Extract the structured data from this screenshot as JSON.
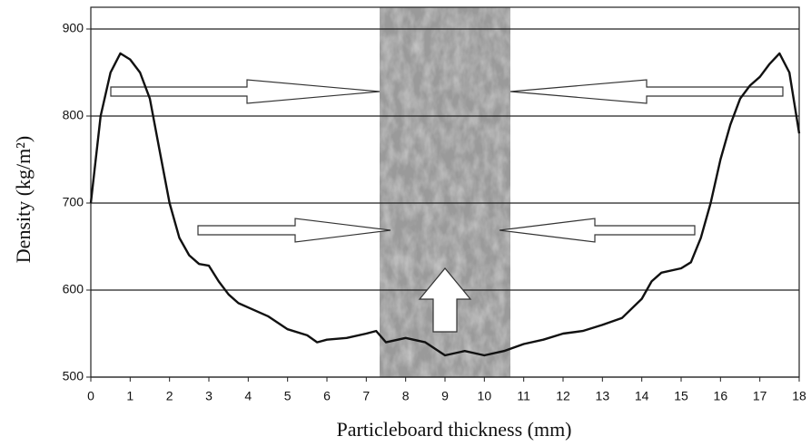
{
  "chart_data": {
    "type": "line",
    "xlabel": "Particleboard thickness  (mm)",
    "ylabel": "Density (kg/m²)",
    "xlim": [
      0,
      18
    ],
    "xticks": [
      0,
      1,
      2,
      3,
      4,
      5,
      6,
      7,
      8,
      9,
      10,
      11,
      12,
      13,
      14,
      15,
      16,
      17,
      18
    ],
    "ylim": [
      500,
      925
    ],
    "yticks": [
      500,
      600,
      700,
      800,
      900
    ],
    "grid": true,
    "series": [
      {
        "color": "#111111",
        "x": [
          0,
          0.25,
          0.5,
          0.75,
          1,
          1.25,
          1.5,
          1.75,
          2,
          2.25,
          2.5,
          2.75,
          3,
          3.25,
          3.5,
          3.75,
          4,
          4.5,
          5,
          5.5,
          5.75,
          6,
          6.5,
          7,
          7.25,
          7.5,
          8,
          8.5,
          9,
          9.5,
          10,
          10.5,
          11,
          11.5,
          12,
          12.5,
          13,
          13.5,
          14,
          14.25,
          14.5,
          15,
          15.25,
          15.5,
          15.75,
          16,
          16.25,
          16.5,
          16.75,
          17,
          17.25,
          17.5,
          17.75,
          18
        ],
        "values": [
          700,
          800,
          850,
          872,
          865,
          850,
          820,
          760,
          700,
          660,
          640,
          630,
          628,
          610,
          595,
          585,
          580,
          570,
          555,
          548,
          540,
          543,
          545,
          550,
          553,
          540,
          545,
          540,
          525,
          530,
          525,
          530,
          538,
          543,
          550,
          553,
          560,
          568,
          590,
          610,
          620,
          625,
          632,
          660,
          700,
          750,
          790,
          820,
          835,
          845,
          860,
          872,
          850,
          780
        ]
      }
    ]
  }
}
